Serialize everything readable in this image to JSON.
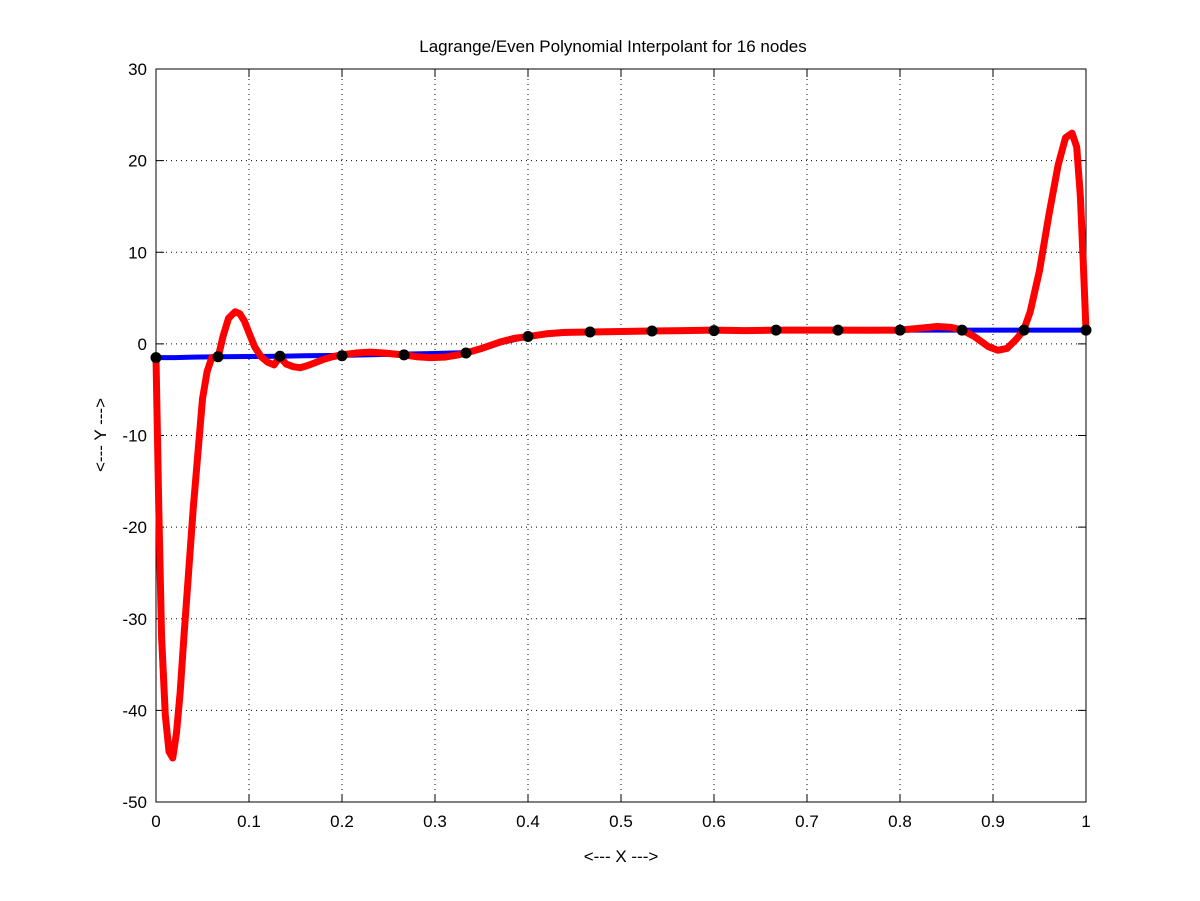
{
  "chart_data": {
    "type": "line",
    "title": "Lagrange/Even Polynomial Interpolant for 16 nodes",
    "xlabel": "<--- X --->",
    "ylabel": "<--- Y --->",
    "xlim": [
      0,
      1
    ],
    "ylim": [
      -50,
      30
    ],
    "grid": true,
    "x_ticks": [
      0,
      0.1,
      0.2,
      0.3,
      0.4,
      0.5,
      0.6,
      0.7,
      0.8,
      0.9,
      1
    ],
    "x_tick_labels": [
      "0",
      "0.1",
      "0.2",
      "0.3",
      "0.4",
      "0.5",
      "0.6",
      "0.7",
      "0.8",
      "0.9",
      "1"
    ],
    "y_ticks": [
      -50,
      -40,
      -30,
      -20,
      -10,
      0,
      10,
      20,
      30
    ],
    "y_tick_labels": [
      "-50",
      "-40",
      "-30",
      "-20",
      "-10",
      "0",
      "10",
      "20",
      "30"
    ],
    "series": [
      {
        "kind": "line",
        "color": "#0000ff",
        "x": [
          0,
          0.02,
          0.04,
          0.067,
          0.1,
          0.133,
          0.16,
          0.2,
          0.25,
          0.3,
          0.333,
          0.35,
          0.37,
          0.4,
          0.43,
          0.467,
          0.5,
          0.533,
          0.6,
          0.667,
          0.733,
          0.8,
          0.867,
          0.933,
          1.0
        ],
        "y": [
          -1.5,
          -1.5,
          -1.45,
          -1.4,
          -1.38,
          -1.35,
          -1.3,
          -1.25,
          -1.15,
          -1.05,
          -0.95,
          -0.6,
          0.1,
          0.8,
          1.1,
          1.3,
          1.35,
          1.4,
          1.45,
          1.5,
          1.5,
          1.5,
          1.5,
          1.5,
          1.5
        ]
      },
      {
        "kind": "line",
        "color": "#ff0000",
        "x": [
          0.0,
          0.003,
          0.006,
          0.01,
          0.014,
          0.018,
          0.022,
          0.026,
          0.03,
          0.035,
          0.04,
          0.045,
          0.05,
          0.055,
          0.06,
          0.067,
          0.072,
          0.078,
          0.085,
          0.09,
          0.095,
          0.1,
          0.106,
          0.113,
          0.12,
          0.127,
          0.133,
          0.14,
          0.148,
          0.155,
          0.162,
          0.17,
          0.18,
          0.19,
          0.2,
          0.215,
          0.23,
          0.245,
          0.26,
          0.267,
          0.28,
          0.295,
          0.31,
          0.325,
          0.333,
          0.35,
          0.37,
          0.385,
          0.4,
          0.42,
          0.44,
          0.467,
          0.5,
          0.533,
          0.567,
          0.6,
          0.633,
          0.667,
          0.7,
          0.733,
          0.765,
          0.8,
          0.82,
          0.84,
          0.855,
          0.867,
          0.88,
          0.895,
          0.905,
          0.915,
          0.925,
          0.933,
          0.94,
          0.95,
          0.96,
          0.97,
          0.978,
          0.985,
          0.99,
          0.994,
          0.997,
          1.0
        ],
        "y": [
          -1.5,
          -18,
          -32,
          -40.5,
          -44.5,
          -45.2,
          -42.5,
          -38,
          -32,
          -25,
          -18,
          -12,
          -6,
          -3,
          -1.5,
          -1.4,
          0.8,
          2.8,
          3.5,
          3.3,
          2.5,
          1.2,
          -0.3,
          -1.4,
          -2.0,
          -2.3,
          -1.4,
          -2.2,
          -2.5,
          -2.6,
          -2.4,
          -2.1,
          -1.7,
          -1.4,
          -1.2,
          -1.0,
          -0.9,
          -1.0,
          -1.15,
          -1.2,
          -1.4,
          -1.5,
          -1.45,
          -1.2,
          -1.0,
          -0.5,
          0.2,
          0.6,
          0.8,
          1.1,
          1.25,
          1.3,
          1.35,
          1.4,
          1.45,
          1.5,
          1.45,
          1.5,
          1.5,
          1.5,
          1.48,
          1.5,
          1.7,
          1.9,
          1.8,
          1.5,
          0.8,
          -0.3,
          -0.7,
          -0.5,
          0.5,
          1.5,
          3.5,
          8.0,
          14.0,
          19.5,
          22.5,
          23.0,
          21.5,
          16.0,
          9.0,
          1.5
        ]
      },
      {
        "kind": "markers",
        "color": "#000000",
        "x": [
          0,
          0.0667,
          0.1333,
          0.2,
          0.2667,
          0.3333,
          0.4,
          0.4667,
          0.5333,
          0.6,
          0.6667,
          0.7333,
          0.8,
          0.8667,
          0.9333,
          1.0
        ],
        "y": [
          -1.5,
          -1.4,
          -1.35,
          -1.3,
          -1.2,
          -1.0,
          0.8,
          1.3,
          1.4,
          1.45,
          1.5,
          1.5,
          1.5,
          1.5,
          1.5,
          1.5
        ]
      }
    ]
  }
}
